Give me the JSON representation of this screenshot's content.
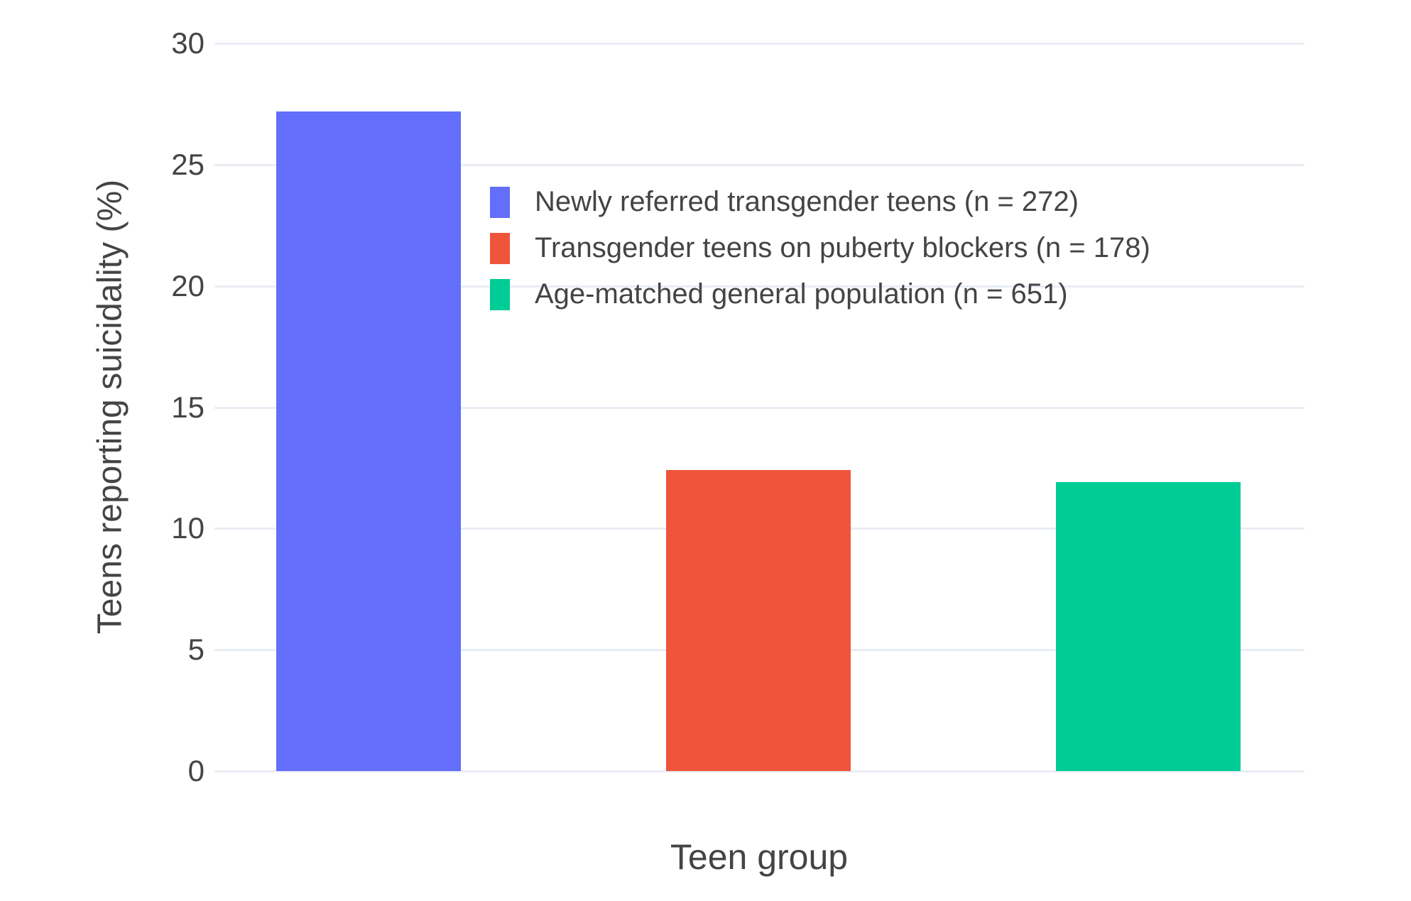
{
  "chart_data": {
    "type": "bar",
    "title": "",
    "xlabel": "Teen group",
    "ylabel": "Teens reporting suicidality (%)",
    "ylim": [
      0,
      30
    ],
    "yticks": [
      0,
      5,
      10,
      15,
      20,
      25,
      30
    ],
    "grid": true,
    "legend_position": "upper-center",
    "categories": [
      "Newly referred transgender teens (n = 272)",
      "Transgender teens on puberty blockers (n = 178)",
      "Age-matched general population (n = 651)"
    ],
    "values": [
      27.2,
      12.4,
      11.9
    ],
    "colors": [
      "#636EFA",
      "#EF553B",
      "#00CC96"
    ]
  },
  "style_colors": {
    "text": "#444444",
    "gridline": "#E9EDF5",
    "background": "#FFFFFF"
  }
}
